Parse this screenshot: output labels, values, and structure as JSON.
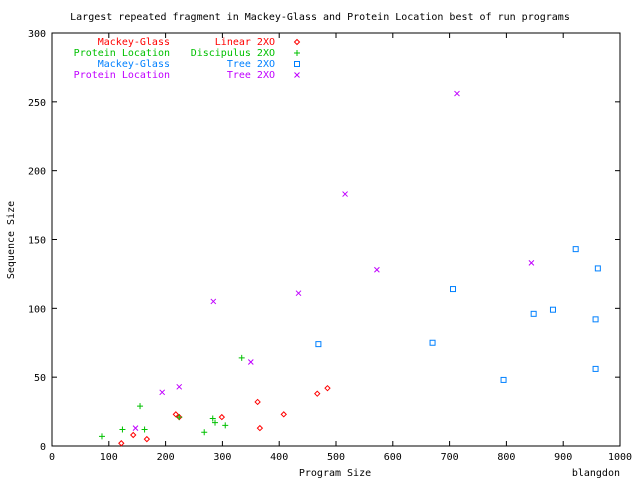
{
  "chart_data": {
    "type": "scatter",
    "title": "Largest repeated fragment in Mackey-Glass and Protein Location best of run programs",
    "xlabel": "Program Size",
    "ylabel": "Sequence Size",
    "credit": "blangdon",
    "xlim": [
      0,
      1000
    ],
    "ylim": [
      0,
      300
    ],
    "xticks": [
      0,
      100,
      200,
      300,
      400,
      500,
      600,
      700,
      800,
      900,
      1000
    ],
    "yticks": [
      0,
      50,
      100,
      150,
      200,
      250,
      300
    ],
    "grid": false,
    "legend_position": "top-left",
    "series": [
      {
        "name": "Mackey-Glass",
        "method": "Linear 2XO",
        "marker": "diamond",
        "color": "#ff0000",
        "points": [
          [
            122,
            2
          ],
          [
            143,
            8
          ],
          [
            167,
            5
          ],
          [
            218,
            23
          ],
          [
            224,
            21
          ],
          [
            299,
            21
          ],
          [
            362,
            32
          ],
          [
            366,
            13
          ],
          [
            408,
            23
          ],
          [
            467,
            38
          ],
          [
            485,
            42
          ]
        ]
      },
      {
        "name": "Protein Location",
        "method": "Discipulus 2XO",
        "marker": "plus",
        "color": "#00c000",
        "points": [
          [
            88,
            7
          ],
          [
            124,
            12
          ],
          [
            155,
            29
          ],
          [
            163,
            12
          ],
          [
            224,
            21
          ],
          [
            268,
            10
          ],
          [
            283,
            20
          ],
          [
            287,
            17
          ],
          [
            305,
            15
          ],
          [
            334,
            64
          ]
        ]
      },
      {
        "name": "Mackey-Glass",
        "method": "Tree 2XO",
        "marker": "square",
        "color": "#0080ff",
        "points": [
          [
            469,
            74
          ],
          [
            670,
            75
          ],
          [
            706,
            114
          ],
          [
            795,
            48
          ],
          [
            848,
            96
          ],
          [
            882,
            99
          ],
          [
            922,
            143
          ],
          [
            957,
            92
          ],
          [
            957,
            56
          ],
          [
            961,
            129
          ]
        ]
      },
      {
        "name": "Protein Location",
        "method": "Tree 2XO",
        "marker": "cross",
        "color": "#c000ff",
        "points": [
          [
            147,
            13
          ],
          [
            194,
            39
          ],
          [
            224,
            43
          ],
          [
            284,
            105
          ],
          [
            350,
            61
          ],
          [
            434,
            111
          ],
          [
            516,
            183
          ],
          [
            572,
            128
          ],
          [
            713,
            256
          ],
          [
            844,
            133
          ]
        ]
      }
    ]
  }
}
